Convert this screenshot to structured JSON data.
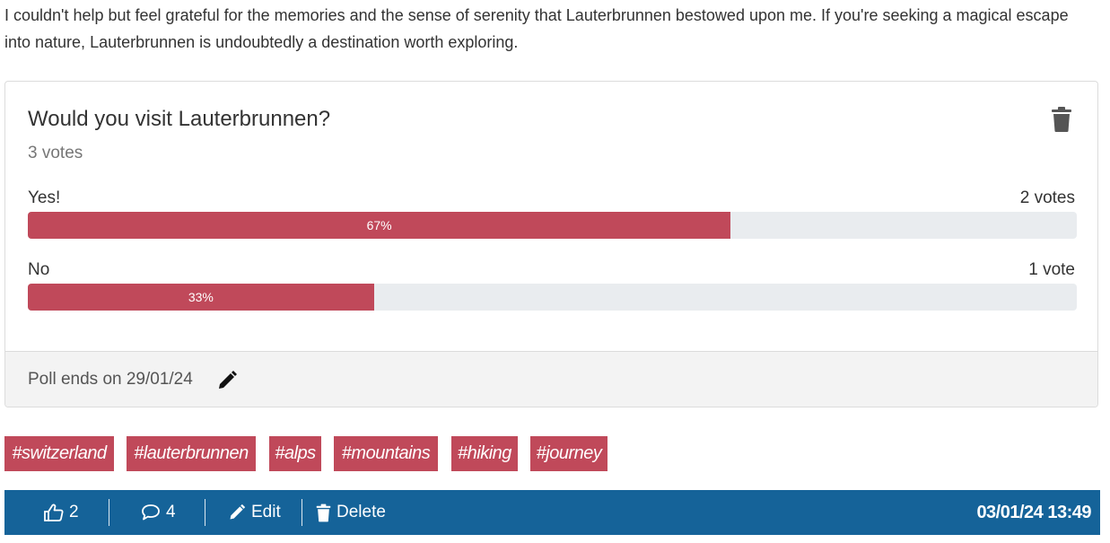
{
  "intro_text": "I couldn't help but feel grateful for the memories and the sense of serenity that Lauterbrunnen bestowed upon me. If you're seeking a magical escape into nature, Lauterbrunnen is undoubtedly a destination worth exploring.",
  "poll": {
    "question": "Would you visit Lauterbrunnen?",
    "total_votes": "3 votes",
    "options": [
      {
        "label": "Yes!",
        "votes": "2 votes",
        "percent_label": "67%",
        "fraction": 0.67
      },
      {
        "label": "No",
        "votes": "1 vote",
        "percent_label": "33%",
        "fraction": 0.33
      }
    ],
    "ends_text": "Poll ends on 29/01/24",
    "bar_color": "#c0495a",
    "track_color": "#e9ecef"
  },
  "tags": [
    "#switzerland",
    "#lauterbrunnen",
    "#alps",
    "#mountains",
    "#hiking",
    "#journey"
  ],
  "actionbar": {
    "likes": "2",
    "comments": "4",
    "edit_label": "Edit",
    "delete_label": "Delete",
    "datetime": "03/01/24 13:49",
    "background": "#156399"
  },
  "icons": {
    "trash": "trash-icon",
    "pencil": "pencil-icon",
    "like": "thumbs-up-icon",
    "comment": "comment-icon"
  }
}
